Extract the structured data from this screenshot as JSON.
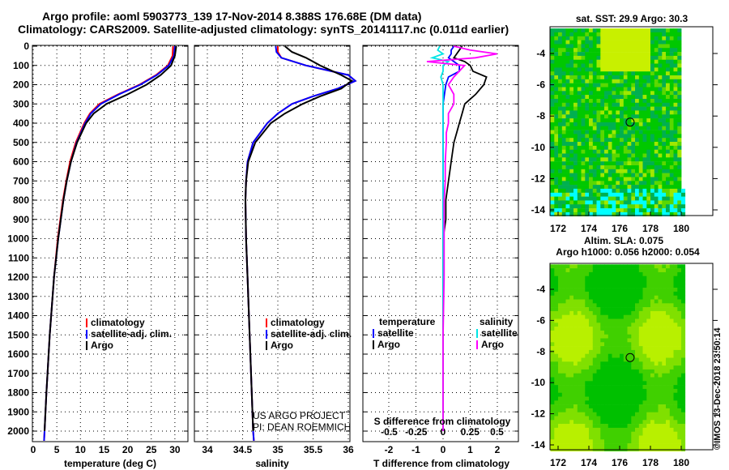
{
  "title_line1": "Argo profile: aoml 5903773_139 17-Nov-2014 8.388S 176.68E (DM data)",
  "title_line2": "Climatology: CARS2009. Satellite-adjusted climatology: synTS_20141117.nc (0.011d earlier)",
  "credit": "©IMOS 13-Dec-2018 23:50:14",
  "project_line1": "US ARGO PROJECT",
  "project_line2": "PI: DEAN ROEMMICH",
  "colors": {
    "climatology": "#ff0000",
    "satellite": "#0000ff",
    "argo": "#000000",
    "sal_sat": "#00e5e5",
    "sal_argo": "#ff00ff"
  },
  "chart_data": [
    {
      "type": "line",
      "name": "temperature",
      "xlabel": "temperature (deg C)",
      "ylabel": "depth",
      "xlim": [
        -2,
        31.5
      ],
      "ylim": [
        2055,
        0
      ],
      "xticks": [
        0,
        5,
        10,
        15,
        20,
        25,
        30
      ],
      "yticks": [
        0,
        100,
        200,
        300,
        400,
        500,
        600,
        700,
        800,
        900,
        1000,
        1100,
        1200,
        1300,
        1400,
        1500,
        1600,
        1700,
        1800,
        1900,
        2000
      ],
      "legend": [
        "climatology",
        "satellite-adj. clim.",
        "Argo"
      ],
      "depth": [
        0,
        50,
        100,
        150,
        200,
        250,
        300,
        350,
        400,
        500,
        600,
        700,
        800,
        1000,
        1200,
        1500,
        1800,
        2000,
        2050
      ],
      "series": [
        {
          "name": "climatology",
          "values": [
            29.6,
            29.5,
            28.5,
            26,
            22.5,
            18,
            14,
            12,
            10.8,
            9.0,
            7.8,
            7.0,
            6.3,
            5.2,
            4.4,
            3.5,
            2.8,
            2.4,
            2.3
          ]
        },
        {
          "name": "satellite-adj. clim.",
          "values": [
            30.0,
            29.8,
            28.7,
            26.2,
            22.7,
            18.2,
            14.3,
            12.2,
            11.0,
            9.2,
            8.0,
            7.1,
            6.4,
            5.3,
            4.4,
            3.5,
            2.8,
            2.4,
            2.3
          ]
        },
        {
          "name": "Argo",
          "values": [
            30.3,
            30.0,
            29.2,
            27.0,
            24.0,
            20.0,
            15.5,
            12.8,
            11.2,
            9.3,
            8.0,
            7.1,
            6.4,
            5.3,
            4.4,
            3.5,
            2.8,
            2.4,
            null
          ]
        }
      ]
    },
    {
      "type": "line",
      "name": "salinity",
      "xlabel": "salinity",
      "xlim": [
        33.8,
        36.1
      ],
      "ylim": [
        2055,
        0
      ],
      "xticks": [
        34,
        34.5,
        35,
        35.5,
        36
      ],
      "legend": [
        "climatology",
        "satellite-adj. clim.",
        "Argo"
      ],
      "depth": [
        0,
        30,
        60,
        100,
        150,
        180,
        220,
        260,
        300,
        350,
        400,
        500,
        600,
        700,
        800,
        1000,
        1200,
        1500,
        1800,
        2000,
        2050
      ],
      "series": [
        {
          "name": "climatology",
          "values": [
            35.0,
            35.0,
            35.05,
            35.4,
            36.0,
            36.1,
            35.85,
            35.5,
            35.2,
            35.0,
            34.85,
            34.65,
            34.57,
            34.55,
            34.54,
            34.55,
            34.57,
            34.6,
            34.63,
            34.65,
            34.66
          ]
        },
        {
          "name": "satellite-adj. clim.",
          "values": [
            34.97,
            34.98,
            35.05,
            35.4,
            36.0,
            36.1,
            35.85,
            35.5,
            35.2,
            35.0,
            34.85,
            34.65,
            34.57,
            34.55,
            34.54,
            34.55,
            34.57,
            34.6,
            34.63,
            34.65,
            34.66
          ]
        },
        {
          "name": "Argo",
          "values": [
            35.1,
            35.2,
            35.4,
            35.6,
            35.9,
            36.05,
            35.9,
            35.6,
            35.35,
            35.1,
            34.9,
            34.68,
            34.58,
            34.55,
            34.54,
            34.55,
            34.57,
            34.6,
            34.63,
            34.65,
            null
          ]
        }
      ]
    },
    {
      "type": "line",
      "name": "differences",
      "xlabel": "T difference from climatology",
      "x2label": "S difference from climatology",
      "xlim": [
        -3,
        3
      ],
      "x2lim": [
        -0.75,
        0.75
      ],
      "ylim": [
        2055,
        0
      ],
      "xticks": [
        -2,
        -1,
        0,
        1,
        2
      ],
      "x2ticks": [
        -0.5,
        -0.25,
        0,
        0.25,
        0.5
      ],
      "legend_temperature_title": "temperature",
      "legend_salinity_title": "salinity",
      "legend": [
        "satellite",
        "Argo",
        "satellite",
        "Argo"
      ],
      "depth": [
        0,
        20,
        40,
        60,
        80,
        100,
        130,
        160,
        200,
        250,
        300,
        350,
        400,
        450,
        500,
        600,
        700,
        800,
        900,
        1000,
        1200,
        1500,
        1800,
        2000
      ],
      "series": [
        {
          "name": "temperature satellite",
          "axis": "T",
          "values": [
            0.4,
            0.3,
            0.3,
            0.2,
            0.4,
            0.6,
            0.6,
            0.2,
            0.1,
            0.05,
            0.0,
            0.0,
            0.0,
            0.0,
            0.0,
            0.0,
            0.0,
            0.0,
            0.0,
            0.0,
            0.0,
            0.0,
            0.0,
            0.0
          ]
        },
        {
          "name": "temperature Argo",
          "axis": "T",
          "values": [
            0.7,
            0.6,
            0.5,
            0.4,
            0.8,
            1.0,
            1.1,
            1.6,
            1.5,
            1.2,
            0.8,
            0.7,
            0.6,
            0.5,
            0.4,
            0.3,
            0.2,
            0.1,
            0.1,
            0.0,
            0.0,
            0.0,
            0.0,
            0.0
          ]
        },
        {
          "name": "salinity satellite",
          "axis": "S",
          "values": [
            -0.03,
            -0.05,
            0.0,
            -0.1,
            0.05,
            0.0,
            0.0,
            -0.02,
            0.0,
            0.0,
            0.0,
            0.0,
            0.0,
            0.0,
            0.0,
            0.0,
            0.0,
            0.0,
            0.0,
            0.0,
            0.0,
            0.0,
            0.0,
            0.0
          ]
        },
        {
          "name": "salinity Argo",
          "axis": "S",
          "values": [
            0.1,
            0.25,
            0.5,
            0.3,
            -0.15,
            0.2,
            0.15,
            0.1,
            0.05,
            0.1,
            0.1,
            0.05,
            0.05,
            0.03,
            0.03,
            0.02,
            0.02,
            0.01,
            0.01,
            0.01,
            0.01,
            0.0,
            0.0,
            0.0
          ]
        }
      ]
    },
    {
      "type": "heatmap",
      "name": "sst-map",
      "title": "sat. SST: 29.9 Argo: 30.3",
      "xticks": [
        172,
        174,
        176,
        178,
        180
      ],
      "yticks": [
        -4,
        -6,
        -8,
        -10,
        -12,
        -14
      ],
      "xlim": [
        171.5,
        181.8
      ],
      "ylim": [
        -14.4,
        -2.5
      ],
      "marker": [
        176.68,
        -8.388
      ]
    },
    {
      "type": "heatmap",
      "name": "sla-map",
      "title_line1": "Altim. SLA: 0.075",
      "title_line2": "Argo h1000: 0.056 h2000: 0.054",
      "xticks": [
        172,
        174,
        176,
        178,
        180
      ],
      "yticks": [
        -4,
        -6,
        -8,
        -10,
        -12,
        -14
      ],
      "xlim": [
        171.5,
        181.8
      ],
      "ylim": [
        -14.4,
        -2.5
      ],
      "marker": [
        176.68,
        -8.388
      ]
    }
  ]
}
